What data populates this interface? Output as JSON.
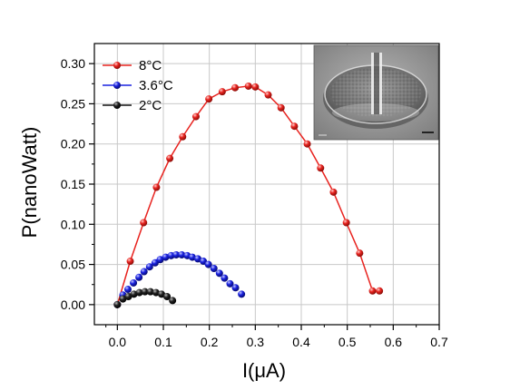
{
  "chart_data": {
    "type": "line",
    "xlabel": "I(μA)",
    "ylabel": "P(nanoWatt)",
    "xlim": [
      -0.05,
      0.7
    ],
    "ylim": [
      -0.025,
      0.325
    ],
    "xticks": [
      0.0,
      0.1,
      0.2,
      0.3,
      0.4,
      0.5,
      0.6,
      0.7
    ],
    "xtick_labels": [
      "0.0",
      "0.1",
      "0.2",
      "0.3",
      "0.4",
      "0.5",
      "0.6",
      "0.7"
    ],
    "yticks": [
      0.0,
      0.05,
      0.1,
      0.15,
      0.2,
      0.25,
      0.3
    ],
    "ytick_labels": [
      "0.00",
      "0.05",
      "0.10",
      "0.15",
      "0.20",
      "0.25",
      "0.30"
    ],
    "grid": true,
    "legend_position": "top-left",
    "inset_image": "sem-micrograph",
    "series": [
      {
        "name": "8°C",
        "color": "#e8231f",
        "x": [
          0.0,
          0.028,
          0.057,
          0.085,
          0.114,
          0.142,
          0.171,
          0.199,
          0.228,
          0.256,
          0.285,
          0.3,
          0.328,
          0.356,
          0.385,
          0.413,
          0.442,
          0.47,
          0.498,
          0.527,
          0.555,
          0.57
        ],
        "y": [
          0.0,
          0.054,
          0.102,
          0.146,
          0.182,
          0.209,
          0.234,
          0.256,
          0.265,
          0.27,
          0.272,
          0.271,
          0.261,
          0.245,
          0.222,
          0.2,
          0.17,
          0.14,
          0.102,
          0.064,
          0.017,
          0.017
        ]
      },
      {
        "name": "3.6°C",
        "color": "#1a22e0",
        "x": [
          0.0,
          0.012,
          0.023,
          0.035,
          0.047,
          0.058,
          0.07,
          0.082,
          0.093,
          0.105,
          0.117,
          0.128,
          0.14,
          0.152,
          0.163,
          0.175,
          0.187,
          0.198,
          0.21,
          0.222,
          0.233,
          0.245,
          0.257,
          0.27
        ],
        "y": [
          0.0,
          0.012,
          0.019,
          0.027,
          0.034,
          0.041,
          0.047,
          0.052,
          0.056,
          0.059,
          0.061,
          0.062,
          0.062,
          0.061,
          0.059,
          0.057,
          0.054,
          0.05,
          0.045,
          0.039,
          0.033,
          0.026,
          0.021,
          0.013
        ]
      },
      {
        "name": "2°C",
        "color": "#111111",
        "x": [
          0.0,
          0.012,
          0.024,
          0.036,
          0.048,
          0.06,
          0.072,
          0.084,
          0.096,
          0.108,
          0.12
        ],
        "y": [
          0.0,
          0.007,
          0.01,
          0.013,
          0.015,
          0.016,
          0.016,
          0.015,
          0.013,
          0.01,
          0.005
        ]
      }
    ]
  }
}
